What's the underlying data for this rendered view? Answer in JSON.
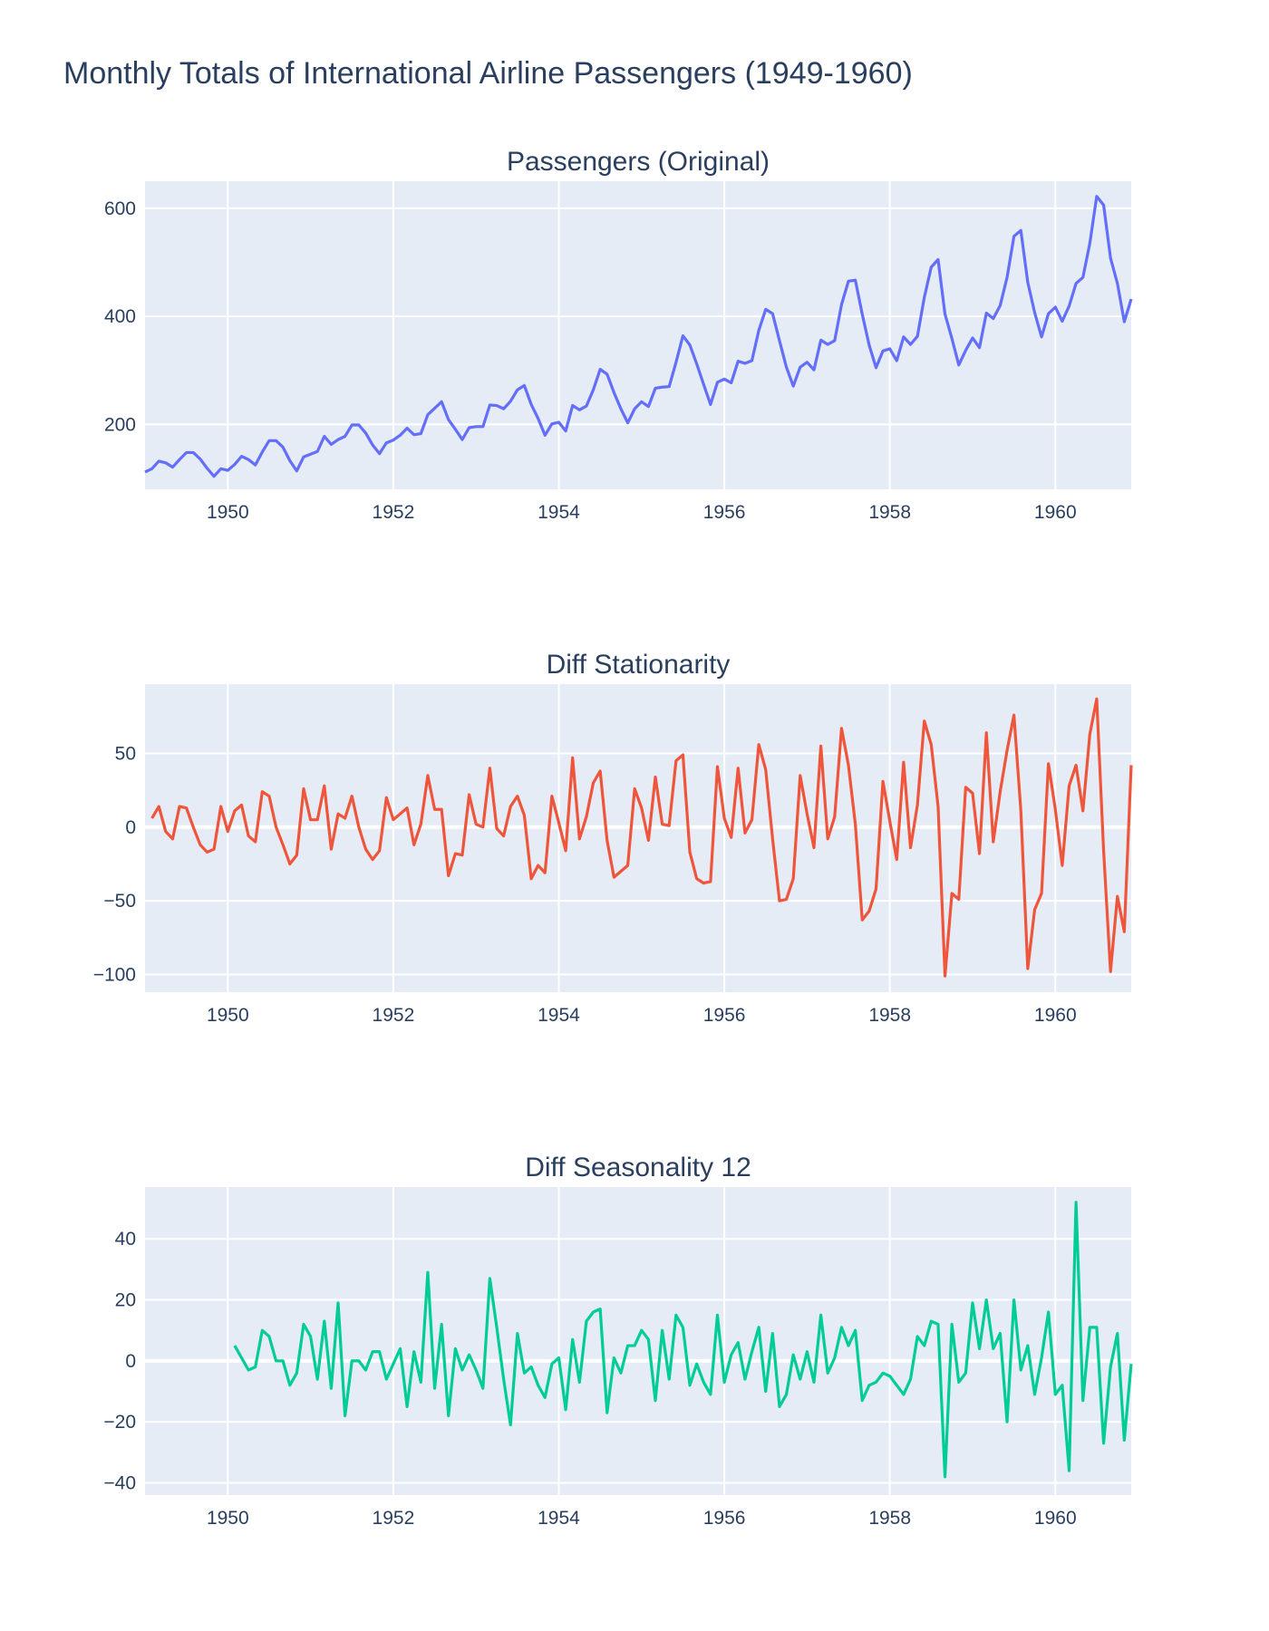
{
  "title": "Monthly Totals of International Airline Passengers (1949-1960)",
  "chart_data": [
    {
      "type": "line",
      "title": "Passengers (Original)",
      "x_start": "1949-01",
      "x_tick_labels": [
        "1950",
        "1952",
        "1954",
        "1956",
        "1958",
        "1960"
      ],
      "y_ticks": [
        200,
        400,
        600
      ],
      "ylim": [
        80,
        650
      ],
      "grid": true,
      "color": "#636efa",
      "values": [
        112,
        118,
        132,
        129,
        121,
        135,
        148,
        148,
        136,
        119,
        104,
        118,
        115,
        126,
        141,
        135,
        125,
        149,
        170,
        170,
        158,
        133,
        114,
        140,
        145,
        150,
        178,
        163,
        172,
        178,
        199,
        199,
        184,
        162,
        146,
        166,
        171,
        180,
        193,
        181,
        183,
        218,
        230,
        242,
        209,
        191,
        172,
        194,
        196,
        196,
        236,
        235,
        229,
        243,
        264,
        272,
        237,
        211,
        180,
        201,
        204,
        188,
        235,
        227,
        234,
        264,
        302,
        293,
        259,
        229,
        203,
        229,
        242,
        233,
        267,
        269,
        270,
        315,
        364,
        347,
        312,
        274,
        237,
        278,
        284,
        277,
        317,
        313,
        318,
        374,
        413,
        405,
        355,
        306,
        271,
        306,
        315,
        301,
        356,
        348,
        355,
        422,
        465,
        467,
        404,
        347,
        305,
        336,
        340,
        318,
        362,
        348,
        363,
        435,
        491,
        505,
        404,
        359,
        310,
        337,
        360,
        342,
        406,
        396,
        420,
        472,
        548,
        559,
        463,
        407,
        362,
        405,
        417,
        391,
        419,
        461,
        472,
        535,
        622,
        606,
        508,
        461,
        390,
        432
      ]
    },
    {
      "type": "line",
      "title": "Diff Stationarity",
      "x_start": "1949-02",
      "x_tick_labels": [
        "1950",
        "1952",
        "1954",
        "1956",
        "1958",
        "1960"
      ],
      "y_ticks": [
        -100,
        -50,
        0,
        50
      ],
      "ylim": [
        -112,
        97
      ],
      "grid": true,
      "color": "#ef553b",
      "values": [
        6,
        14,
        -3,
        -8,
        14,
        13,
        0,
        -12,
        -17,
        -15,
        14,
        -3,
        11,
        15,
        -6,
        -10,
        24,
        21,
        0,
        -12,
        -25,
        -19,
        26,
        5,
        5,
        28,
        -15,
        9,
        6,
        21,
        0,
        -15,
        -22,
        -16,
        20,
        5,
        9,
        13,
        -12,
        2,
        35,
        12,
        12,
        -33,
        -18,
        -19,
        22,
        2,
        0,
        40,
        -1,
        -6,
        14,
        21,
        8,
        -35,
        -26,
        -31,
        21,
        3,
        -16,
        47,
        -8,
        7,
        30,
        38,
        -9,
        -34,
        -30,
        -26,
        26,
        13,
        -9,
        34,
        2,
        1,
        45,
        49,
        -17,
        -35,
        -38,
        -37,
        41,
        6,
        -7,
        40,
        -4,
        5,
        56,
        39,
        -8,
        -50,
        -49,
        -35,
        35,
        9,
        -14,
        55,
        -8,
        7,
        67,
        42,
        2,
        -63,
        -57,
        -42,
        31,
        4,
        -22,
        44,
        -14,
        15,
        72,
        56,
        14,
        -101,
        -45,
        -49,
        27,
        23,
        -18,
        64,
        -10,
        24,
        52,
        76,
        11,
        -96,
        -56,
        -45,
        43,
        12,
        -26,
        28,
        42,
        11,
        63,
        87,
        -16,
        -98,
        -47,
        -71,
        42
      ]
    },
    {
      "type": "line",
      "title": "Diff Seasonality 12",
      "x_start": "1950-02",
      "x_tick_labels": [
        "1950",
        "1952",
        "1954",
        "1956",
        "1958",
        "1960"
      ],
      "y_ticks": [
        -40,
        -20,
        0,
        20,
        40
      ],
      "ylim": [
        -44,
        57
      ],
      "grid": true,
      "color": "#00cc96",
      "values": [
        5,
        1,
        -3,
        -2,
        10,
        8,
        0,
        0,
        -8,
        -4,
        12,
        8,
        -6,
        13,
        -9,
        19,
        -18,
        0,
        0,
        -3,
        3,
        3,
        -6,
        -1,
        4,
        -15,
        3,
        -7,
        29,
        -9,
        12,
        -18,
        4,
        -3,
        2,
        -3,
        -9,
        27,
        11,
        -6,
        -21,
        9,
        -4,
        -2,
        -8,
        -12,
        -1,
        1,
        -16,
        7,
        -7,
        13,
        16,
        17,
        -17,
        1,
        -4,
        5,
        5,
        10,
        7,
        -13,
        10,
        -6,
        15,
        11,
        -8,
        -1,
        -7,
        -11,
        15,
        -7,
        2,
        6,
        -6,
        3,
        11,
        -10,
        9,
        -15,
        -11,
        2,
        -6,
        3,
        -7,
        15,
        -4,
        1,
        11,
        5,
        10,
        -13,
        -8,
        -7,
        -4,
        -5,
        -8,
        -11,
        -6,
        8,
        5,
        13,
        12,
        -38,
        12,
        -7,
        -4,
        19,
        4,
        20,
        4,
        9,
        -20,
        20,
        -3,
        5,
        -11,
        1,
        16,
        -11,
        -8,
        -36,
        52,
        -13,
        11,
        11,
        -27,
        -2,
        9,
        -26,
        -1
      ]
    }
  ]
}
